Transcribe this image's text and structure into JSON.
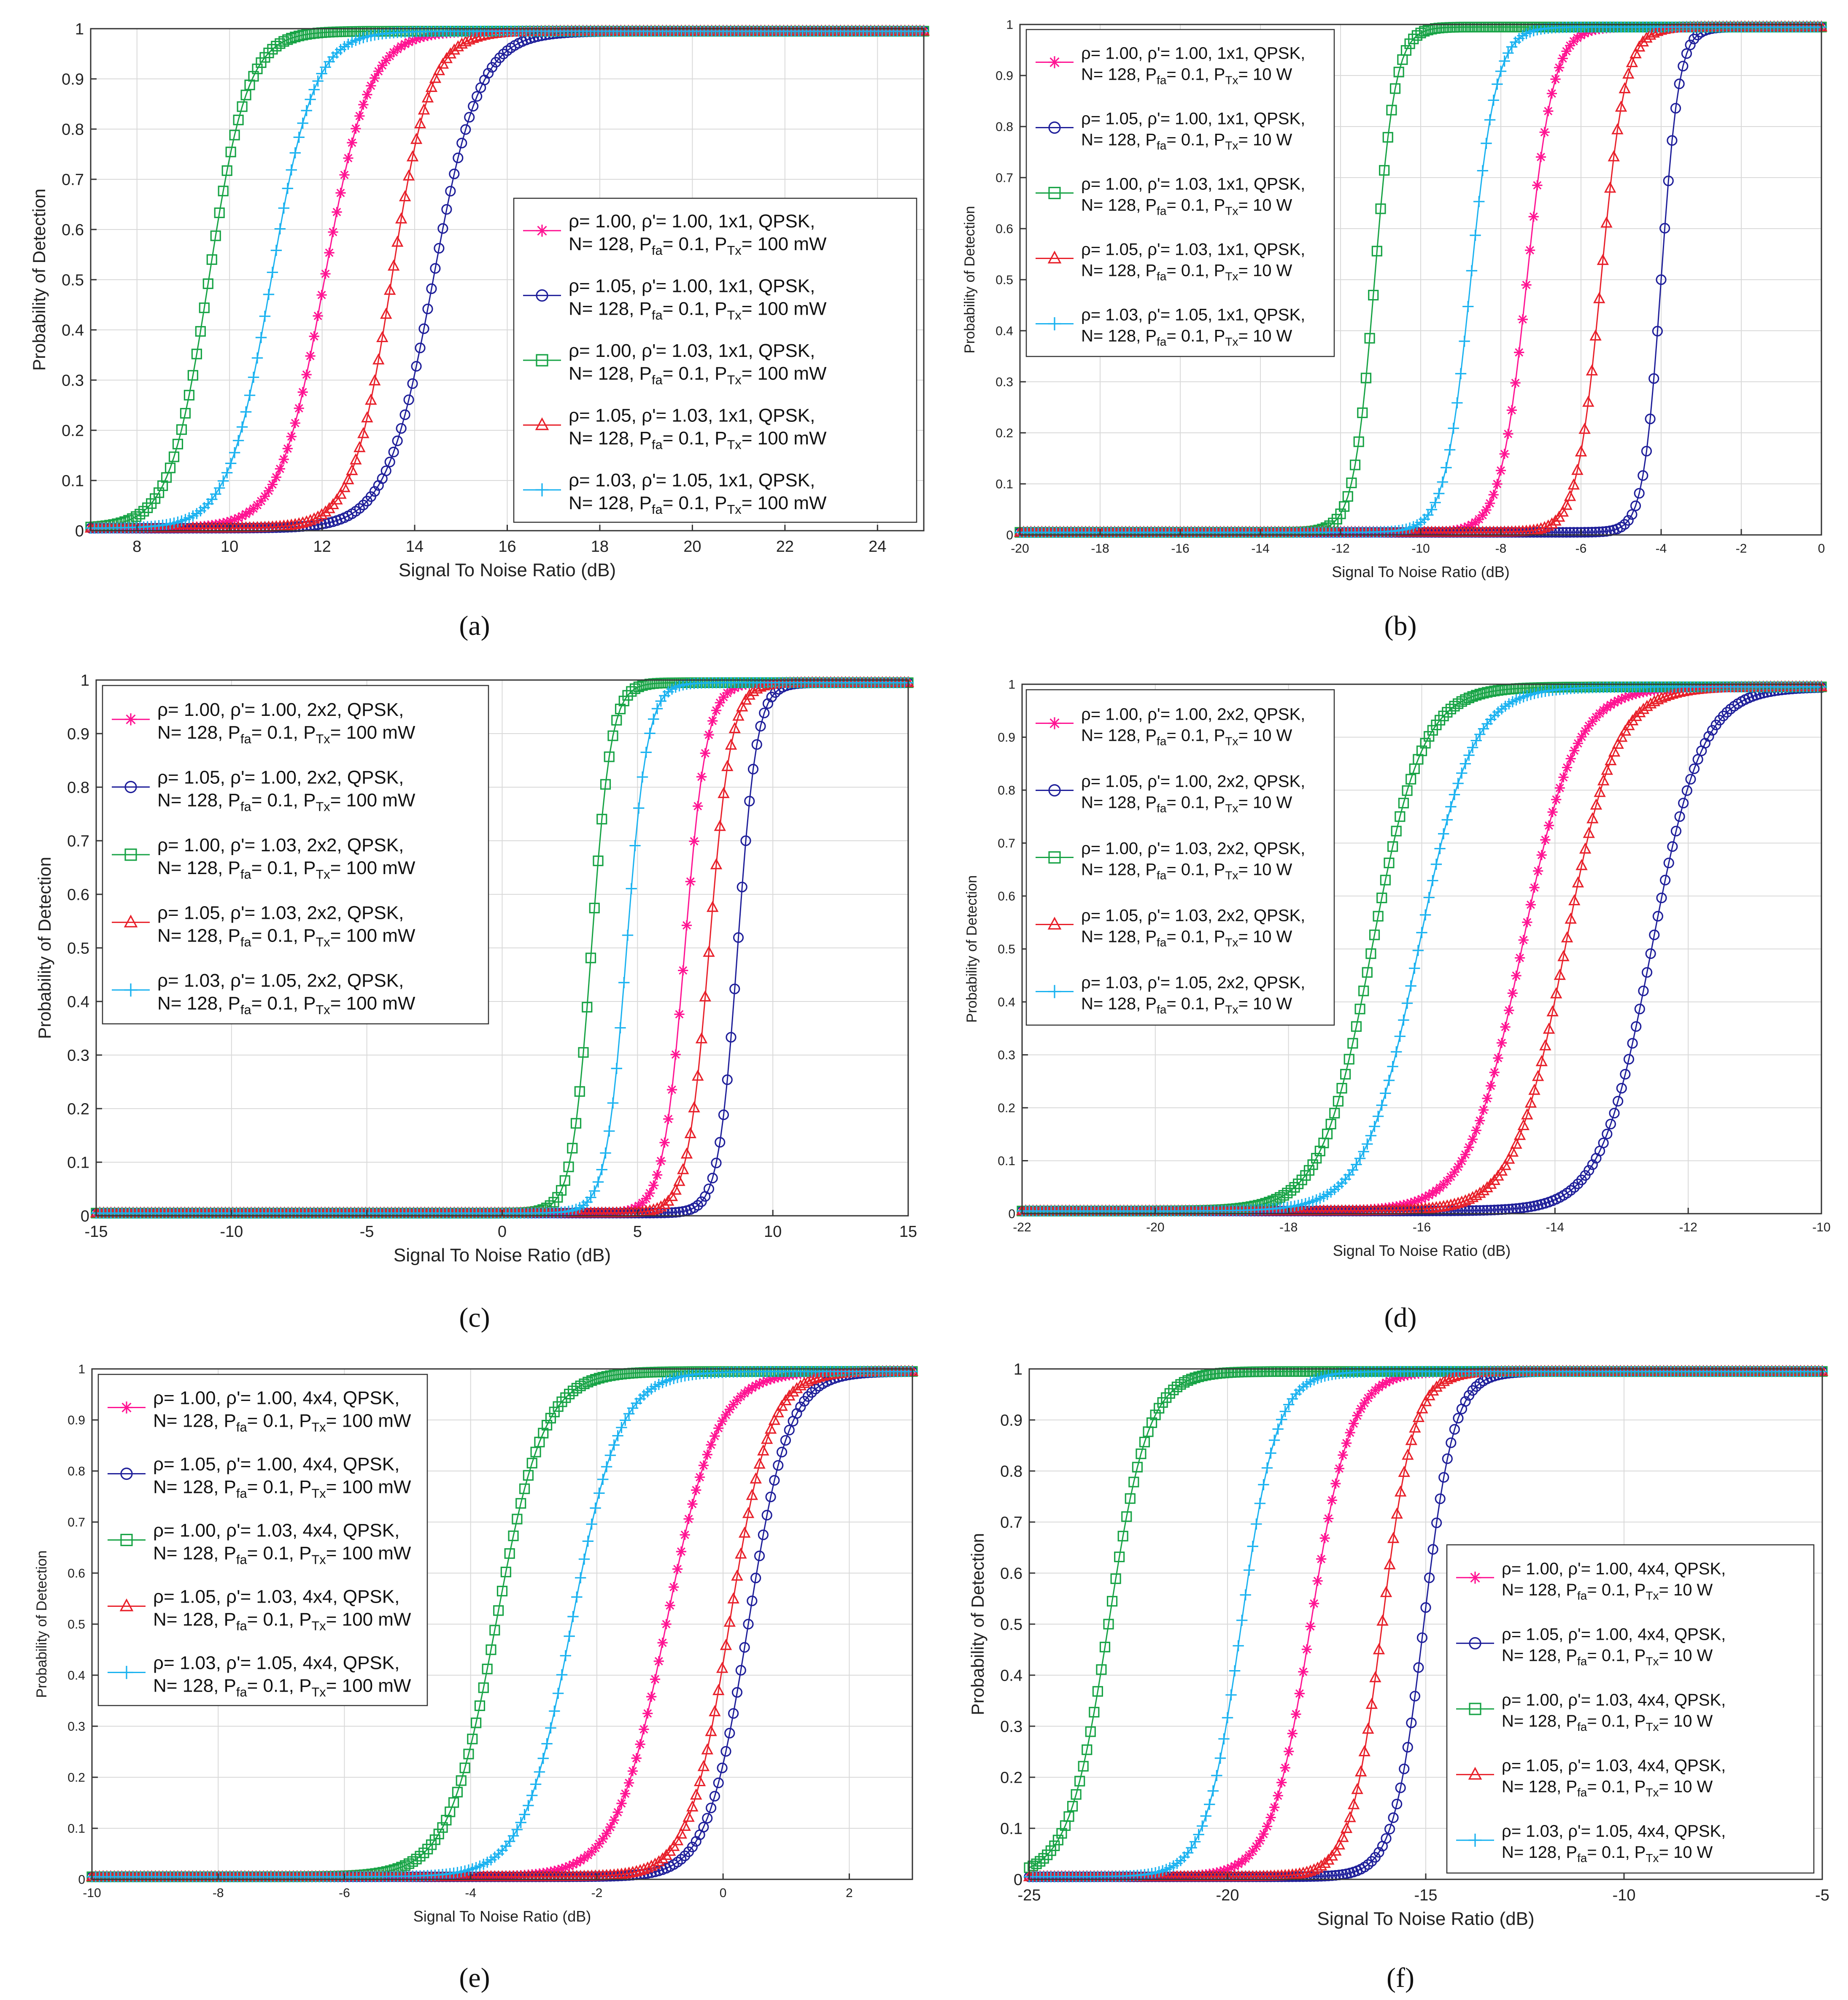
{
  "figure": {
    "panels": [
      "a",
      "b",
      "c",
      "d",
      "e",
      "f"
    ]
  },
  "style": {
    "colors": [
      "#ff1493",
      "#1f1f9a",
      "#17a345",
      "#e8202a",
      "#1ab2f0"
    ],
    "markers": [
      "asterisk",
      "circle",
      "square",
      "triangle",
      "plus"
    ],
    "grid_color": "#d9d9d9",
    "axis_color": "#333333"
  },
  "chart_data": [
    {
      "id": "a",
      "caption": "(a)",
      "type": "line",
      "xlabel": "Signal To Noise Ratio (dB)",
      "ylabel": "Probability of Detection",
      "xlim": [
        7,
        25
      ],
      "ylim": [
        0,
        1
      ],
      "xticks": [
        8,
        10,
        12,
        14,
        16,
        18,
        20,
        22,
        24
      ],
      "xtick_labels": [
        "8",
        "10",
        "12",
        "14",
        "16",
        "18",
        "20",
        "22",
        "24"
      ],
      "yticks": [
        0,
        0.1,
        0.2,
        0.3,
        0.4,
        0.5,
        0.6,
        0.7,
        0.8,
        0.9,
        1
      ],
      "ytick_labels": [
        "0",
        "0.1",
        "0.2",
        "0.3",
        "0.4",
        "0.5",
        "0.6",
        "0.7",
        "0.8",
        "0.9",
        "1"
      ],
      "legend_position": "lower-right",
      "series": [
        {
          "name": "ρ= 1.00, ρ'= 1.00, 1x1, QPSK,",
          "line2": "N= 128, P",
          "sub1": "fa",
          "mid": "= 0.1, P",
          "sub2": "Tx",
          "tail": "= 100 mW",
          "center": 12.05,
          "width": 0.48
        },
        {
          "name": "ρ= 1.05, ρ'= 1.00, 1x1, QPSK,",
          "line2": "N= 128, P",
          "sub1": "fa",
          "mid": "= 0.1, P",
          "sub2": "Tx",
          "tail": "= 100 mW",
          "center": 14.4,
          "width": 0.5
        },
        {
          "name": "ρ= 1.00, ρ'= 1.03, 1x1, QPSK,",
          "line2": "N= 128, P",
          "sub1": "fa",
          "mid": "= 0.1, P",
          "sub2": "Tx",
          "tail": "= 100 mW",
          "center": 9.55,
          "width": 0.42
        },
        {
          "name": "ρ= 1.05, ρ'= 1.03, 1x1, QPSK,",
          "line2": "N= 128, P",
          "sub1": "fa",
          "mid": "= 0.1, P",
          "sub2": "Tx",
          "tail": "= 100 mW",
          "center": 13.5,
          "width": 0.42
        },
        {
          "name": "ρ= 1.03, ρ'= 1.05, 1x1, QPSK,",
          "line2": "N= 128, P",
          "sub1": "fa",
          "mid": "= 0.1, P",
          "sub2": "Tx",
          "tail": "= 100 mW",
          "center": 10.9,
          "width": 0.46
        }
      ]
    },
    {
      "id": "b",
      "caption": "(b)",
      "type": "line",
      "xlabel": "Signal To Noise Ratio (dB)",
      "ylabel": "Probability of Detection",
      "xlim": [
        -20,
        0
      ],
      "ylim": [
        0,
        1
      ],
      "xticks": [
        -20,
        -18,
        -16,
        -14,
        -12,
        -10,
        -8,
        -6,
        -4,
        -2,
        0
      ],
      "xtick_labels": [
        "-20",
        "-18",
        "-16",
        "-14",
        "-12",
        "-10",
        "-8",
        "-6",
        "-4",
        "-2",
        "0"
      ],
      "yticks": [
        0,
        0.1,
        0.2,
        0.3,
        0.4,
        0.5,
        0.6,
        0.7,
        0.8,
        0.9,
        1
      ],
      "ytick_labels": [
        "0",
        "0.1",
        "0.2",
        "0.3",
        "0.4",
        "0.5",
        "0.6",
        "0.7",
        "0.8",
        "0.9",
        "1"
      ],
      "legend_position": "top-left",
      "series": [
        {
          "name": "ρ= 1.00, ρ'= 1.00, 1x1, QPSK,",
          "line2": "N= 128, P",
          "sub1": "fa",
          "mid": "= 0.1, P",
          "sub2": "Tx",
          "tail": "= 10 W",
          "center": -7.35,
          "width": 0.33
        },
        {
          "name": "ρ= 1.05, ρ'= 1.00, 1x1, QPSK,",
          "line2": "N= 128, P",
          "sub1": "fa",
          "mid": "= 0.1, P",
          "sub2": "Tx",
          "tail": "= 10 W",
          "center": -4.0,
          "width": 0.22
        },
        {
          "name": "ρ= 1.00, ρ'= 1.03, 1x1, QPSK,",
          "line2": "N= 128, P",
          "sub1": "fa",
          "mid": "= 0.1, P",
          "sub2": "Tx",
          "tail": "= 10 W",
          "center": -11.15,
          "width": 0.26
        },
        {
          "name": "ρ= 1.05, ρ'= 1.03, 1x1, QPSK,",
          "line2": "N= 128, P",
          "sub1": "fa",
          "mid": "= 0.1, P",
          "sub2": "Tx",
          "tail": "= 10 W",
          "center": -5.5,
          "width": 0.3
        },
        {
          "name": "ρ= 1.03, ρ'= 1.05, 1x1, QPSK,",
          "line2": "N= 128, P",
          "sub1": "fa",
          "mid": "= 0.1, P",
          "sub2": "Tx",
          "tail": "= 10 W",
          "center": -8.75,
          "width": 0.32
        }
      ]
    },
    {
      "id": "c",
      "caption": "(c)",
      "type": "line",
      "xlabel": "Signal To Noise Ratio (dB)",
      "ylabel": "Probability of Detection",
      "xlim": [
        -15,
        15
      ],
      "ylim": [
        0,
        1
      ],
      "xticks": [
        -15,
        -10,
        -5,
        0,
        5,
        10,
        15
      ],
      "xtick_labels": [
        "-15",
        "-10",
        "-5",
        "0",
        "5",
        "10",
        "15"
      ],
      "yticks": [
        0,
        0.1,
        0.2,
        0.3,
        0.4,
        0.5,
        0.6,
        0.7,
        0.8,
        0.9,
        1
      ],
      "ytick_labels": [
        "0",
        "0.1",
        "0.2",
        "0.3",
        "0.4",
        "0.5",
        "0.6",
        "0.7",
        "0.8",
        "0.9",
        "1"
      ],
      "legend_position": "top-left",
      "series": [
        {
          "name": "ρ= 1.00, ρ'= 1.00, 2x2, QPSK,",
          "line2": "N= 128, P",
          "sub1": "fa",
          "mid": "= 0.1, P",
          "sub2": "Tx",
          "tail": "= 100 mW",
          "center": 6.75,
          "width": 0.4
        },
        {
          "name": "ρ= 1.05, ρ'= 1.00, 2x2, QPSK,",
          "line2": "N= 128, P",
          "sub1": "fa",
          "mid": "= 0.1, P",
          "sub2": "Tx",
          "tail": "= 100 mW",
          "center": 8.7,
          "width": 0.35
        },
        {
          "name": "ρ= 1.00, ρ'= 1.03, 2x2, QPSK,",
          "line2": "N= 128, P",
          "sub1": "fa",
          "mid": "= 0.1, P",
          "sub2": "Tx",
          "tail": "= 100 mW",
          "center": 3.3,
          "width": 0.36
        },
        {
          "name": "ρ= 1.05, ρ'= 1.03, 2x2, QPSK,",
          "line2": "N= 128, P",
          "sub1": "fa",
          "mid": "= 0.1, P",
          "sub2": "Tx",
          "tail": "= 100 mW",
          "center": 7.65,
          "width": 0.4
        },
        {
          "name": "ρ= 1.03, ρ'= 1.05, 2x2, QPSK,",
          "line2": "N= 128, P",
          "sub1": "fa",
          "mid": "= 0.1, P",
          "sub2": "Tx",
          "tail": "= 100 mW",
          "center": 4.6,
          "width": 0.38
        }
      ]
    },
    {
      "id": "d",
      "caption": "(d)",
      "type": "line",
      "xlabel": "Signal To Noise Ratio (dB)",
      "ylabel": "Probability of Detection",
      "xlim": [
        -22,
        -10
      ],
      "ylim": [
        0,
        1
      ],
      "xticks": [
        -22,
        -20,
        -18,
        -16,
        -14,
        -12,
        -10
      ],
      "xtick_labels": [
        "-22",
        "-20",
        "-18",
        "-16",
        "-14",
        "-12",
        "-10"
      ],
      "yticks": [
        0,
        0.1,
        0.2,
        0.3,
        0.4,
        0.5,
        0.6,
        0.7,
        0.8,
        0.9,
        1
      ],
      "ytick_labels": [
        "0",
        "0.1",
        "0.2",
        "0.3",
        "0.4",
        "0.5",
        "0.6",
        "0.7",
        "0.8",
        "0.9",
        "1"
      ],
      "legend_position": "top-left",
      "series": [
        {
          "name": "ρ= 1.00, ρ'= 1.00, 2x2, QPSK,",
          "line2": "N= 128, P",
          "sub1": "fa",
          "mid": "= 0.1, P",
          "sub2": "Tx",
          "tail": "= 10 W",
          "center": -14.5,
          "width": 0.4
        },
        {
          "name": "ρ= 1.05, ρ'= 1.00, 2x2, QPSK,",
          "line2": "N= 128, P",
          "sub1": "fa",
          "mid": "= 0.1, P",
          "sub2": "Tx",
          "tail": "= 10 W",
          "center": -12.55,
          "width": 0.38
        },
        {
          "name": "ρ= 1.00, ρ'= 1.03, 2x2, QPSK,",
          "line2": "N= 128, P",
          "sub1": "fa",
          "mid": "= 0.1, P",
          "sub2": "Tx",
          "tail": "= 10 W",
          "center": -16.75,
          "width": 0.38
        },
        {
          "name": "ρ= 1.05, ρ'= 1.03, 2x2, QPSK,",
          "line2": "N= 128, P",
          "sub1": "fa",
          "mid": "= 0.1, P",
          "sub2": "Tx",
          "tail": "= 10 W",
          "center": -13.85,
          "width": 0.38
        },
        {
          "name": "ρ= 1.03, ρ'= 1.05, 2x2, QPSK,",
          "line2": "N= 128, P",
          "sub1": "fa",
          "mid": "= 0.1, P",
          "sub2": "Tx",
          "tail": "= 10 W",
          "center": -16.05,
          "width": 0.4
        }
      ]
    },
    {
      "id": "e",
      "caption": "(e)",
      "type": "line",
      "xlabel": "Signal To Noise Ratio (dB)",
      "ylabel": "Probability of Detection",
      "xlim": [
        -10,
        3
      ],
      "ylim": [
        0,
        1
      ],
      "xticks": [
        -10,
        -8,
        -6,
        -4,
        -2,
        0,
        2
      ],
      "xtick_labels": [
        "-10",
        "-8",
        "-6",
        "-4",
        "-2",
        "0",
        "2"
      ],
      "yticks": [
        0,
        0.1,
        0.2,
        0.3,
        0.4,
        0.5,
        0.6,
        0.7,
        0.8,
        0.9,
        1
      ],
      "ytick_labels": [
        "0",
        "0.1",
        "0.2",
        "0.3",
        "0.4",
        "0.5",
        "0.6",
        "0.7",
        "0.8",
        "0.9",
        "1"
      ],
      "legend_position": "top-left",
      "series": [
        {
          "name": "ρ= 1.00, ρ'= 1.00, 4x4, QPSK,",
          "line2": "N= 128, P",
          "sub1": "fa",
          "mid": "= 0.1, P",
          "sub2": "Tx",
          "tail": "= 100 mW",
          "center": -0.9,
          "width": 0.4
        },
        {
          "name": "ρ= 1.05, ρ'= 1.00, 4x4, QPSK,",
          "line2": "N= 128, P",
          "sub1": "fa",
          "mid": "= 0.1, P",
          "sub2": "Tx",
          "tail": "= 100 mW",
          "center": 0.4,
          "width": 0.32
        },
        {
          "name": "ρ= 1.00, ρ'= 1.03, 4x4, QPSK,",
          "line2": "N= 128, P",
          "sub1": "fa",
          "mid": "= 0.1, P",
          "sub2": "Tx",
          "tail": "= 100 mW",
          "center": -3.6,
          "width": 0.38
        },
        {
          "name": "ρ= 1.05, ρ'= 1.03, 4x4, QPSK,",
          "line2": "N= 128, P",
          "sub1": "fa",
          "mid": "= 0.1, P",
          "sub2": "Tx",
          "tail": "= 100 mW",
          "center": 0.1,
          "width": 0.32
        },
        {
          "name": "ρ= 1.03, ρ'= 1.05, 4x4, QPSK,",
          "line2": "N= 128, P",
          "sub1": "fa",
          "mid": "= 0.1, P",
          "sub2": "Tx",
          "tail": "= 100 mW",
          "center": -2.4,
          "width": 0.38
        }
      ]
    },
    {
      "id": "f",
      "caption": "(f)",
      "type": "line",
      "xlabel": "Signal To Noise Ratio (dB)",
      "ylabel": "Probability of Detection",
      "xlim": [
        -25,
        -5
      ],
      "ylim": [
        0,
        1
      ],
      "xticks": [
        -25,
        -20,
        -15,
        -10,
        -5
      ],
      "xtick_labels": [
        "-25",
        "-20",
        "-15",
        "-10",
        "-5"
      ],
      "yticks": [
        0,
        0.1,
        0.2,
        0.3,
        0.4,
        0.5,
        0.6,
        0.7,
        0.8,
        0.9,
        1
      ],
      "ytick_labels": [
        "0",
        "0.1",
        "0.2",
        "0.3",
        "0.4",
        "0.5",
        "0.6",
        "0.7",
        "0.8",
        "0.9",
        "1"
      ],
      "legend_position": "lower-right",
      "series": [
        {
          "name": "ρ= 1.00, ρ'= 1.00, 4x4, QPSK,",
          "line2": "N= 128, P",
          "sub1": "fa",
          "mid": "= 0.1, P",
          "sub2": "Tx",
          "tail": "= 10 W",
          "center": -17.9,
          "width": 0.5
        },
        {
          "name": "ρ= 1.05, ρ'= 1.00, 4x4, QPSK,",
          "line2": "N= 128, P",
          "sub1": "fa",
          "mid": "= 0.1, P",
          "sub2": "Tx",
          "tail": "= 10 W",
          "center": -15.05,
          "width": 0.38
        },
        {
          "name": "ρ= 1.00, ρ'= 1.03, 4x4, QPSK,",
          "line2": "N= 128, P",
          "sub1": "fa",
          "mid": "= 0.1, P",
          "sub2": "Tx",
          "tail": "= 10 W",
          "center": -23.0,
          "width": 0.5
        },
        {
          "name": "ρ= 1.05, ρ'= 1.03, 4x4, QPSK,",
          "line2": "N= 128, P",
          "sub1": "fa",
          "mid": "= 0.1, P",
          "sub2": "Tx",
          "tail": "= 10 W",
          "center": -16.1,
          "width": 0.4
        },
        {
          "name": "ρ= 1.03, ρ'= 1.05, 4x4, QPSK,",
          "line2": "N= 128, P",
          "sub1": "fa",
          "mid": "= 0.1, P",
          "sub2": "Tx",
          "tail": "= 10 W",
          "center": -19.65,
          "width": 0.45
        }
      ]
    }
  ]
}
